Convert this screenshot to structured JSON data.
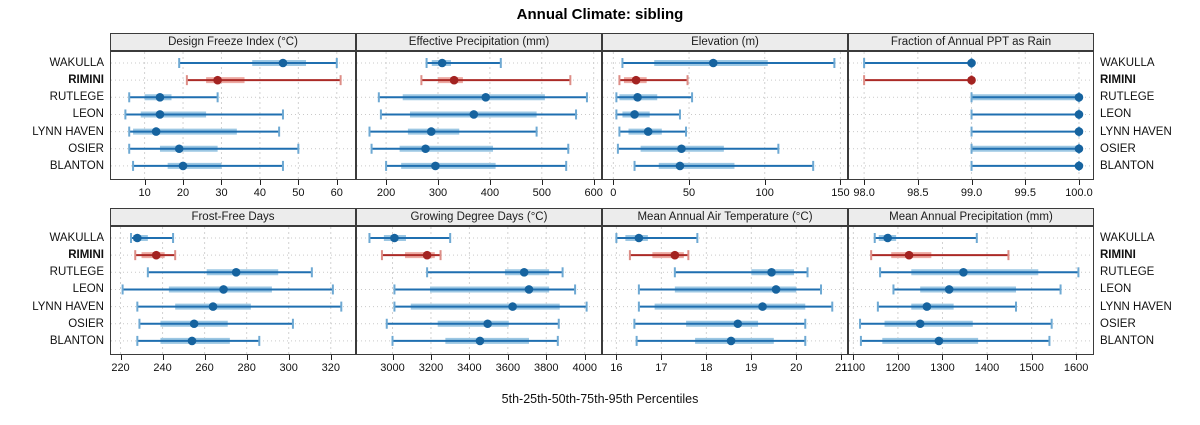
{
  "colors": {
    "series_blue": "#1f6fb0",
    "series_blue_band": "#9cc7e3",
    "series_blue_cap": "#6ea9d3",
    "series_blue_dot": "#16639f",
    "highlight_red": "#ab2a26",
    "highlight_red_band": "#edaaa3",
    "highlight_red_cap": "#dd8d86",
    "highlight_red_dot": "#a32321",
    "grid": "#c9c9c9",
    "panel_border": "#3b3b3b",
    "header_bg": "#ececec"
  },
  "chart_data": {
    "type": "scatter",
    "variant": "percentile-dot-interval-trellis",
    "title": "Annual Climate: sibling",
    "xlabel": "5th-25th-50th-75th-95th Percentiles",
    "legend_position": "none",
    "grid": true,
    "categories": [
      "WAKULLA",
      "RIMINI",
      "RUTLEGE",
      "LEON",
      "LYNN HAVEN",
      "OSIER",
      "BLANTON"
    ],
    "highlighted_category": "RIMINI",
    "percentile_levels": [
      5,
      25,
      50,
      75,
      95
    ],
    "panels": [
      {
        "title": "Design Freeze Index (°C)",
        "row": 0,
        "xlim": [
          1,
          65
        ],
        "ticks": [
          10,
          20,
          30,
          40,
          50,
          60
        ],
        "tick_labels": [
          "10",
          "20",
          "30",
          "40",
          "50",
          "60"
        ],
        "values": [
          [
            19,
            38,
            46,
            52,
            60
          ],
          [
            21,
            26,
            29,
            36,
            61
          ],
          [
            6,
            10,
            14,
            17,
            29
          ],
          [
            5,
            9,
            14,
            26,
            46
          ],
          [
            6,
            7,
            13,
            34,
            45
          ],
          [
            6,
            14,
            19,
            29,
            50
          ],
          [
            7,
            16,
            20,
            30,
            46
          ]
        ]
      },
      {
        "title": "Effective Precipitation (mm)",
        "row": 0,
        "xlim": [
          142,
          616
        ],
        "ticks": [
          200,
          300,
          400,
          500,
          600
        ],
        "tick_labels": [
          "200",
          "300",
          "400",
          "500",
          "600"
        ],
        "values": [
          [
            278,
            288,
            308,
            325,
            421
          ],
          [
            268,
            300,
            331,
            348,
            555
          ],
          [
            186,
            232,
            392,
            506,
            587
          ],
          [
            190,
            246,
            369,
            490,
            566
          ],
          [
            168,
            242,
            287,
            341,
            490
          ],
          [
            172,
            226,
            276,
            406,
            551
          ],
          [
            200,
            229,
            295,
            411,
            547
          ]
        ]
      },
      {
        "title": "Elevation (m)",
        "row": 0,
        "xlim": [
          -7.5,
          155
        ],
        "ticks": [
          0,
          50,
          100,
          150
        ],
        "tick_labels": [
          "0",
          "50",
          "100",
          "150"
        ],
        "values": [
          [
            6,
            27,
            66,
            102,
            146
          ],
          [
            4,
            7,
            15,
            22,
            49
          ],
          [
            2,
            4,
            16,
            29,
            52
          ],
          [
            2,
            6,
            14,
            24,
            44
          ],
          [
            4,
            10,
            23,
            32,
            48
          ],
          [
            3,
            18,
            45,
            73,
            109
          ],
          [
            14,
            30,
            44,
            80,
            132
          ]
        ]
      },
      {
        "title": "Fraction of Annual PPT as Rain",
        "row": 0,
        "xlim": [
          97.85,
          100.14
        ],
        "ticks": [
          98.0,
          98.5,
          99.0,
          99.5,
          100.0
        ],
        "tick_labels": [
          "98.0",
          "98.5",
          "99.0",
          "99.5",
          "100.0"
        ],
        "values": [
          [
            98,
            99,
            99,
            99,
            99
          ],
          [
            98,
            99,
            99,
            99,
            99
          ],
          [
            99,
            99,
            100,
            100,
            100
          ],
          [
            99,
            100,
            100,
            100,
            100
          ],
          [
            99,
            100,
            100,
            100,
            100
          ],
          [
            99,
            99,
            100,
            100,
            100
          ],
          [
            99,
            100,
            100,
            100,
            100
          ]
        ]
      },
      {
        "title": "Frost-Free Days",
        "row": 1,
        "xlim": [
          215,
          332
        ],
        "ticks": [
          220,
          240,
          260,
          280,
          300,
          320
        ],
        "tick_labels": [
          "220",
          "240",
          "260",
          "280",
          "300",
          "320"
        ],
        "values": [
          [
            225,
            226,
            228,
            233,
            245
          ],
          [
            227,
            230,
            237,
            241,
            246
          ],
          [
            233,
            261,
            275,
            295,
            311
          ],
          [
            221,
            243,
            269,
            292,
            321
          ],
          [
            228,
            246,
            264,
            282,
            325
          ],
          [
            229,
            239,
            255,
            271,
            302
          ],
          [
            228,
            239,
            254,
            272,
            286
          ]
        ]
      },
      {
        "title": "Growing Degree Days (°C)",
        "row": 1,
        "xlim": [
          2810,
          4090
        ],
        "ticks": [
          3000,
          3200,
          3400,
          3600,
          3800,
          4000
        ],
        "tick_labels": [
          "3000",
          "3200",
          "3400",
          "3600",
          "3800",
          "4000"
        ],
        "values": [
          [
            2880,
            2955,
            3010,
            3070,
            3300
          ],
          [
            2945,
            3065,
            3180,
            3220,
            3250
          ],
          [
            3180,
            3585,
            3685,
            3815,
            3885
          ],
          [
            3010,
            3195,
            3710,
            3815,
            3950
          ],
          [
            3010,
            3095,
            3625,
            3870,
            4010
          ],
          [
            2970,
            3235,
            3495,
            3605,
            3865
          ],
          [
            3000,
            3275,
            3455,
            3710,
            3860
          ]
        ]
      },
      {
        "title": "Mean Annual Air Temperature (°C)",
        "row": 1,
        "xlim": [
          15.68,
          21.15
        ],
        "ticks": [
          16,
          17,
          18,
          19,
          20,
          21
        ],
        "tick_labels": [
          "16",
          "17",
          "18",
          "19",
          "20",
          "21"
        ],
        "values": [
          [
            16.0,
            16.2,
            16.5,
            16.7,
            17.8
          ],
          [
            16.3,
            16.8,
            17.3,
            17.5,
            17.6
          ],
          [
            17.3,
            19.0,
            19.45,
            19.95,
            20.25
          ],
          [
            16.5,
            17.3,
            19.55,
            20.0,
            20.55
          ],
          [
            16.5,
            16.85,
            19.25,
            20.2,
            20.8
          ],
          [
            16.4,
            17.55,
            18.7,
            19.15,
            20.2
          ],
          [
            16.45,
            17.75,
            18.55,
            19.5,
            20.2
          ]
        ]
      },
      {
        "title": "Mean Annual Precipitation (mm)",
        "row": 1,
        "xlim": [
          1088,
          1640
        ],
        "ticks": [
          1100,
          1200,
          1300,
          1400,
          1500,
          1600
        ],
        "tick_labels": [
          "1100",
          "1200",
          "1300",
          "1400",
          "1500",
          "1600"
        ],
        "values": [
          [
            1148,
            1157,
            1177,
            1196,
            1377
          ],
          [
            1140,
            1185,
            1225,
            1275,
            1448
          ],
          [
            1160,
            1230,
            1347,
            1515,
            1605
          ],
          [
            1190,
            1250,
            1315,
            1465,
            1565
          ],
          [
            1155,
            1230,
            1265,
            1325,
            1465
          ],
          [
            1115,
            1170,
            1250,
            1368,
            1545
          ],
          [
            1117,
            1165,
            1292,
            1380,
            1540
          ]
        ]
      }
    ]
  }
}
